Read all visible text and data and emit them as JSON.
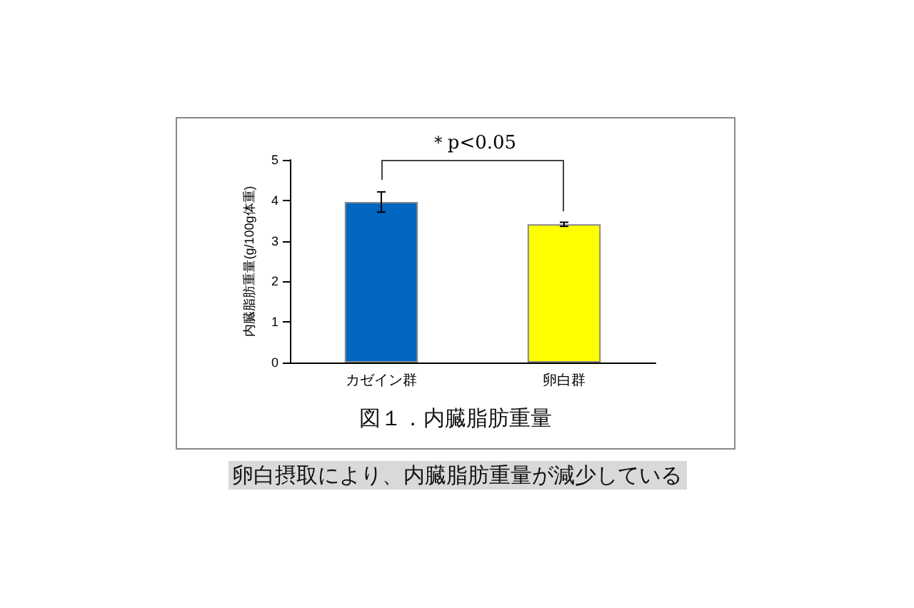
{
  "chart_data": {
    "type": "bar",
    "title": "図１．内臓脂肪重量",
    "ylabel": "内臓脂肪重量(g/100g体重)",
    "categories": [
      "カゼイン群",
      "卵白群"
    ],
    "values": [
      3.96,
      3.41
    ],
    "colors": [
      "#0066c0",
      "#ffff00"
    ],
    "errors": [
      0.25,
      0.05
    ],
    "ylim": [
      0,
      5
    ],
    "yticks": [
      0,
      1,
      2,
      3,
      4,
      5
    ],
    "grid": false,
    "annotations": [
      "＊p<0.05",
      "卵白摂取により、内臓脂肪重量が減少している"
    ]
  }
}
